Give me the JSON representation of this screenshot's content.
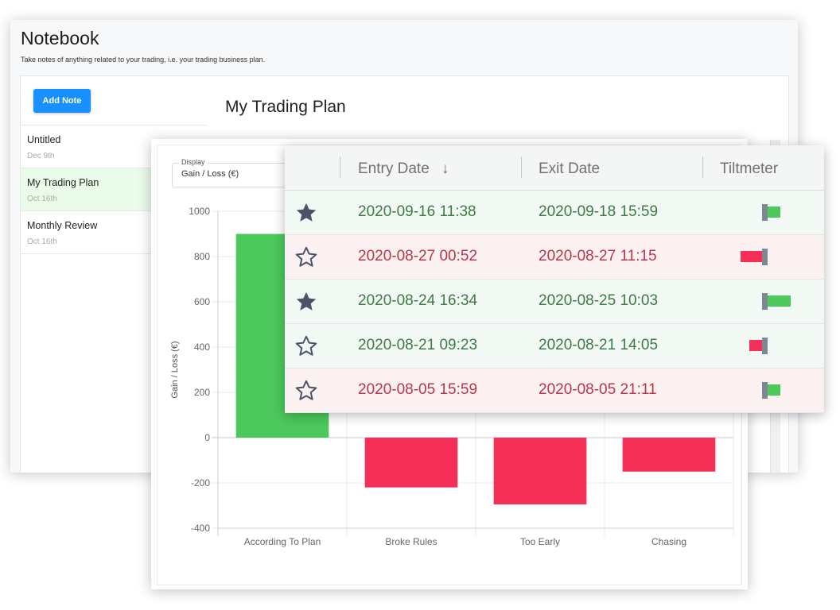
{
  "notebook": {
    "title": "Notebook",
    "subtitle": "Take notes of anything related to your trading, i.e. your trading business plan.",
    "add_note_label": "Add Note",
    "notes": [
      {
        "name": "Untitled",
        "date": "Dec 9th",
        "active": false
      },
      {
        "name": "My Trading Plan",
        "date": "Oct 16th",
        "active": true
      },
      {
        "name": "Monthly Review",
        "date": "Oct 16th",
        "active": false
      }
    ],
    "main_title": "My Trading Plan"
  },
  "display_select": {
    "legend": "Display",
    "value": "Gain / Loss (€)"
  },
  "colors": {
    "gain": "#4cc85c",
    "loss": "#f52f57",
    "accent": "#1890ff"
  },
  "chart_data": {
    "type": "bar",
    "ylabel": "Gain / Loss (€)",
    "xlabel": "",
    "categories": [
      "According To Plan",
      "Broke Rules",
      "Too Early",
      "Chasing"
    ],
    "values": [
      900,
      -220,
      -295,
      -150
    ],
    "ylim": [
      -400,
      1000
    ],
    "yticks": [
      "1000",
      "800",
      "600",
      "400",
      "200",
      "0",
      "-200",
      "-400"
    ],
    "grid": true
  },
  "trades": {
    "headers": {
      "entry_date": "Entry Date",
      "sort_arrow": "↓",
      "exit_date": "Exit Date",
      "tiltmeter": "Tiltmeter"
    },
    "rows": [
      {
        "starred": true,
        "result": "win",
        "entry": "2020-09-16 11:38",
        "exit": "2020-09-18 15:59",
        "tilt": 0.35
      },
      {
        "starred": false,
        "result": "loss",
        "entry": "2020-08-27 00:52",
        "exit": "2020-08-27 11:15",
        "tilt": -0.6
      },
      {
        "starred": true,
        "result": "win",
        "entry": "2020-08-24 16:34",
        "exit": "2020-08-25 10:03",
        "tilt": 0.65
      },
      {
        "starred": false,
        "result": "win",
        "entry": "2020-08-21 09:23",
        "exit": "2020-08-21 14:05",
        "tilt": -0.35
      },
      {
        "starred": false,
        "result": "loss",
        "entry": "2020-08-05 15:59",
        "exit": "2020-08-05 21:11",
        "tilt": 0.35
      }
    ]
  }
}
